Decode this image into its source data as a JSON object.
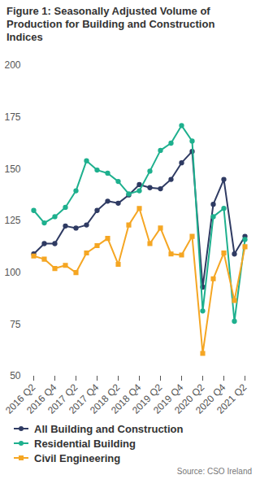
{
  "chart_data": {
    "type": "line",
    "title": "Figure 1: Seasonally Adjusted Volume of Production for Building and Construction Indices",
    "caption": "Source: CSO Ireland",
    "categories": [
      "2016 Q2",
      null,
      "2016 Q4",
      null,
      "2017 Q2",
      null,
      "2017 Q4",
      null,
      "2018 Q2",
      null,
      "2018 Q4",
      null,
      "2019 Q2",
      null,
      "2019 Q4",
      null,
      "2020 Q2",
      null,
      "2020 Q4",
      null,
      "2021 Q2"
    ],
    "series": [
      {
        "name": "All Building and Construction",
        "color": "#2f3b63",
        "marker": "circle",
        "values": [
          109,
          114,
          114,
          122.5,
          121.5,
          123,
          130,
          134.5,
          133.5,
          137.5,
          142.5,
          141,
          140.5,
          145,
          153,
          158.5,
          93,
          133,
          145,
          109,
          117.5
        ]
      },
      {
        "name": "Residential Building",
        "color": "#1eb08e",
        "marker": "circle",
        "values": [
          130,
          124,
          127,
          131.5,
          139.5,
          154,
          149.5,
          148,
          144,
          138,
          139.5,
          149,
          159,
          162.5,
          171,
          163.5,
          81.5,
          127,
          131,
          76.5,
          116
        ]
      },
      {
        "name": "Civil Engineering",
        "color": "#f5a623",
        "marker": "square",
        "values": [
          108,
          106.5,
          102,
          103.5,
          100,
          109.5,
          113,
          116.5,
          104,
          123,
          131,
          114,
          121.5,
          109,
          108.5,
          117.5,
          61,
          97,
          109.5,
          86.5,
          112.5
        ]
      }
    ],
    "ylim": [
      50,
      200
    ],
    "yticks": [
      50,
      75,
      100,
      125,
      150,
      175,
      200
    ],
    "grid": false,
    "legend": "bottom"
  }
}
